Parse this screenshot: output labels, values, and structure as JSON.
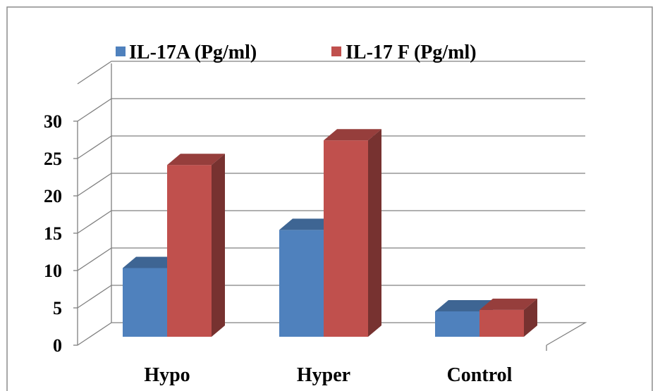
{
  "chart_data": {
    "type": "bar",
    "categories": [
      "Hypo",
      "Hyper",
      "Control"
    ],
    "series": [
      {
        "name": "IL-17A (Pg/ml)",
        "values": [
          9.2,
          14.3,
          3.4
        ],
        "color": "#4F81BD"
      },
      {
        "name": "IL-17 F (Pg/ml)",
        "values": [
          23.0,
          26.3,
          3.6
        ],
        "color": "#C0504D"
      }
    ],
    "yticks": [
      "0",
      "5",
      "10",
      "15",
      "20",
      "25",
      "30"
    ],
    "ylim": [
      0,
      30
    ],
    "grid": true,
    "legend": "top",
    "style": "3d-clustered-column"
  }
}
